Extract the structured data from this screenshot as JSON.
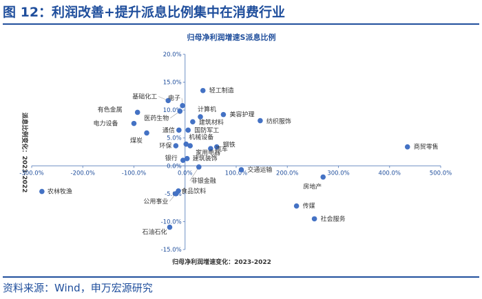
{
  "figure": {
    "title": "图 12：利润改善+提升派息比例集中在消费行业",
    "source": "资料来源：Wind，申万宏源研究"
  },
  "chart_data": {
    "type": "scatter",
    "title": "归母净利润增速S派息比例",
    "xlabel": "归母净利润增速变化：2023-2022",
    "ylabel": "派息比例变化：2023-2022",
    "xlim": [
      -300,
      500
    ],
    "ylim": [
      -15,
      20
    ],
    "x_ticks": [
      "-300.0%",
      "-200.0%",
      "-100.0%",
      "0.0%",
      "100.0%",
      "200.0%",
      "300.0%",
      "400.0%",
      "500.0%"
    ],
    "y_ticks": [
      "20.0%",
      "15.0%",
      "10.0%",
      "5.0%",
      "0.0%",
      "-5.0%",
      "-10.0%",
      "-15.0%"
    ],
    "grid": false,
    "marker_color": "#4472c4",
    "points": [
      {
        "label": "轻工制造",
        "x": 35,
        "y": 13.5
      },
      {
        "label": "电子",
        "x": -5,
        "y": 10.8
      },
      {
        "label": "基础化工",
        "x": -33,
        "y": 11.7
      },
      {
        "label": "有色金属",
        "x": -93,
        "y": 9.6
      },
      {
        "label": "医药生物",
        "x": -10,
        "y": 9.8
      },
      {
        "label": "计算机",
        "x": 30,
        "y": 8.8
      },
      {
        "label": "美容护理",
        "x": 75,
        "y": 9.2
      },
      {
        "label": "纺织服饰",
        "x": 147,
        "y": 8.1
      },
      {
        "label": "建筑材料",
        "x": 15,
        "y": 7.9
      },
      {
        "label": "电力设备",
        "x": -100,
        "y": 7.6
      },
      {
        "label": "通信",
        "x": -12,
        "y": 6.4
      },
      {
        "label": "国防军工",
        "x": 6,
        "y": 6.4
      },
      {
        "label": "煤炭",
        "x": -75,
        "y": 5.9
      },
      {
        "label": "机械设备",
        "x": 2,
        "y": 3.9
      },
      {
        "label": "环保",
        "x": -18,
        "y": 3.6
      },
      {
        "label": "家用电器",
        "x": 10,
        "y": 3.6
      },
      {
        "label": "钢铁",
        "x": 62,
        "y": 3.4
      },
      {
        "label": "汽车",
        "x": 50,
        "y": 3.1
      },
      {
        "label": "商贸零售",
        "x": 435,
        "y": 3.4
      },
      {
        "label": "银行",
        "x": -4,
        "y": 1.0
      },
      {
        "label": "建筑装饰",
        "x": 4,
        "y": 1.3
      },
      {
        "label": "交通运输",
        "x": 110,
        "y": -0.7
      },
      {
        "label": "非银金融",
        "x": 27,
        "y": -0.2
      },
      {
        "label": "房地产",
        "x": 270,
        "y": -2.0
      },
      {
        "label": "农林牧渔",
        "x": -280,
        "y": -4.6
      },
      {
        "label": "食品饮料",
        "x": -13,
        "y": -4.5
      },
      {
        "label": "公用事业",
        "x": -18,
        "y": -5.0
      },
      {
        "label": "传媒",
        "x": 218,
        "y": -7.2
      },
      {
        "label": "社会服务",
        "x": 253,
        "y": -9.5
      },
      {
        "label": "石油石化",
        "x": -30,
        "y": -11.0
      }
    ]
  }
}
